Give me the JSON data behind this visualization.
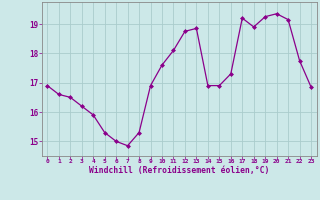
{
  "x": [
    0,
    1,
    2,
    3,
    4,
    5,
    6,
    7,
    8,
    9,
    10,
    11,
    12,
    13,
    14,
    15,
    16,
    17,
    18,
    19,
    20,
    21,
    22,
    23
  ],
  "y": [
    16.9,
    16.6,
    16.5,
    16.2,
    15.9,
    15.3,
    15.0,
    14.85,
    15.3,
    16.9,
    17.6,
    18.1,
    18.75,
    18.85,
    16.9,
    16.9,
    17.3,
    19.2,
    18.9,
    19.25,
    19.35,
    19.15,
    17.75,
    16.85
  ],
  "line_color": "#8B008B",
  "bg_color": "#cce8e8",
  "grid_color": "#aacccc",
  "xlabel": "Windchill (Refroidissement éolien,°C)",
  "xlabel_color": "#8B008B",
  "tick_color": "#8B008B",
  "ylim": [
    14.5,
    19.75
  ],
  "xlim": [
    -0.5,
    23.5
  ],
  "yticks": [
    15,
    16,
    17,
    18,
    19
  ],
  "xticks": [
    0,
    1,
    2,
    3,
    4,
    5,
    6,
    7,
    8,
    9,
    10,
    11,
    12,
    13,
    14,
    15,
    16,
    17,
    18,
    19,
    20,
    21,
    22,
    23
  ]
}
